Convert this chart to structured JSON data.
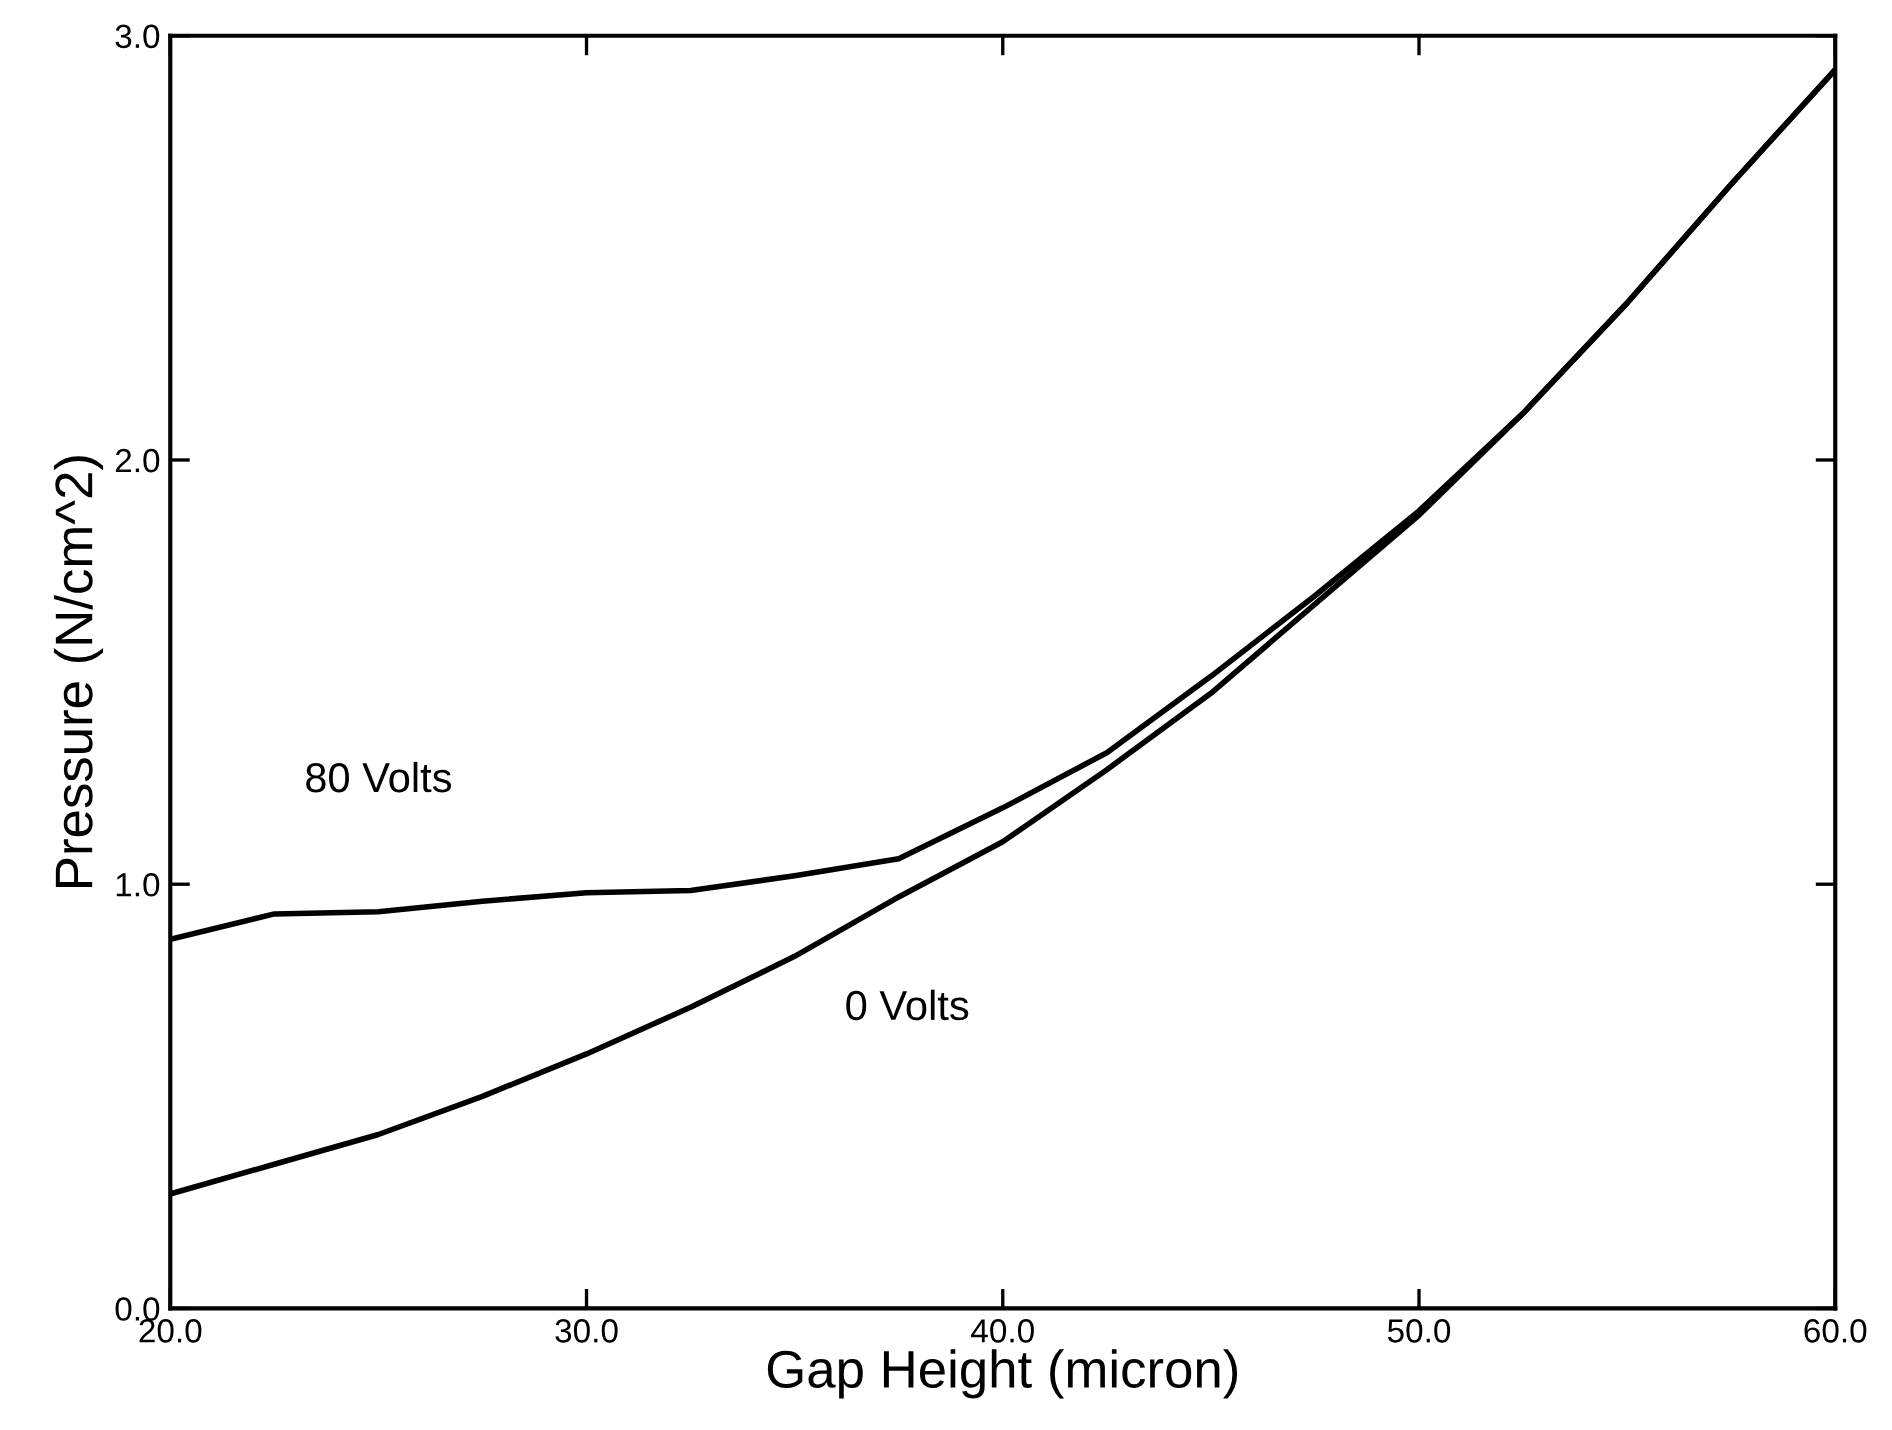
{
  "chart_data": {
    "type": "line",
    "xlabel": "Gap Height (micron)",
    "ylabel": "Pressure (N/cm^2)",
    "x": [
      20,
      22.5,
      25,
      27.5,
      30,
      32.5,
      35,
      37.5,
      40,
      42.5,
      45,
      47.5,
      50,
      52.5,
      55,
      57.5,
      60
    ],
    "series": [
      {
        "name": "80 Volts",
        "color": "#000000",
        "values": [
          0.87,
          0.93,
          0.935,
          0.96,
          0.98,
          0.985,
          1.02,
          1.06,
          1.18,
          1.31,
          1.49,
          1.68,
          1.88,
          2.11,
          2.37,
          2.65,
          2.92
        ]
      },
      {
        "name": "0 Volts",
        "color": "#000000",
        "values": [
          0.27,
          0.34,
          0.41,
          0.5,
          0.6,
          0.71,
          0.83,
          0.97,
          1.1,
          1.27,
          1.45,
          1.66,
          1.87,
          2.11,
          2.37,
          2.65,
          2.92
        ]
      }
    ],
    "xlim": [
      20,
      60
    ],
    "ylim": [
      0,
      3
    ],
    "xticks": [
      {
        "value": 20,
        "label": "20.0"
      },
      {
        "value": 30,
        "label": "30.0"
      },
      {
        "value": 40,
        "label": "40.0"
      },
      {
        "value": 50,
        "label": "50.0"
      },
      {
        "value": 60,
        "label": "60.0"
      }
    ],
    "yticks": [
      {
        "value": 0,
        "label": "0.0"
      },
      {
        "value": 1,
        "label": "1.0"
      },
      {
        "value": 2,
        "label": "2.0"
      },
      {
        "value": 3,
        "label": "3.0"
      }
    ],
    "grid": false,
    "legend": false,
    "marker": "none",
    "line_style": "solid"
  }
}
